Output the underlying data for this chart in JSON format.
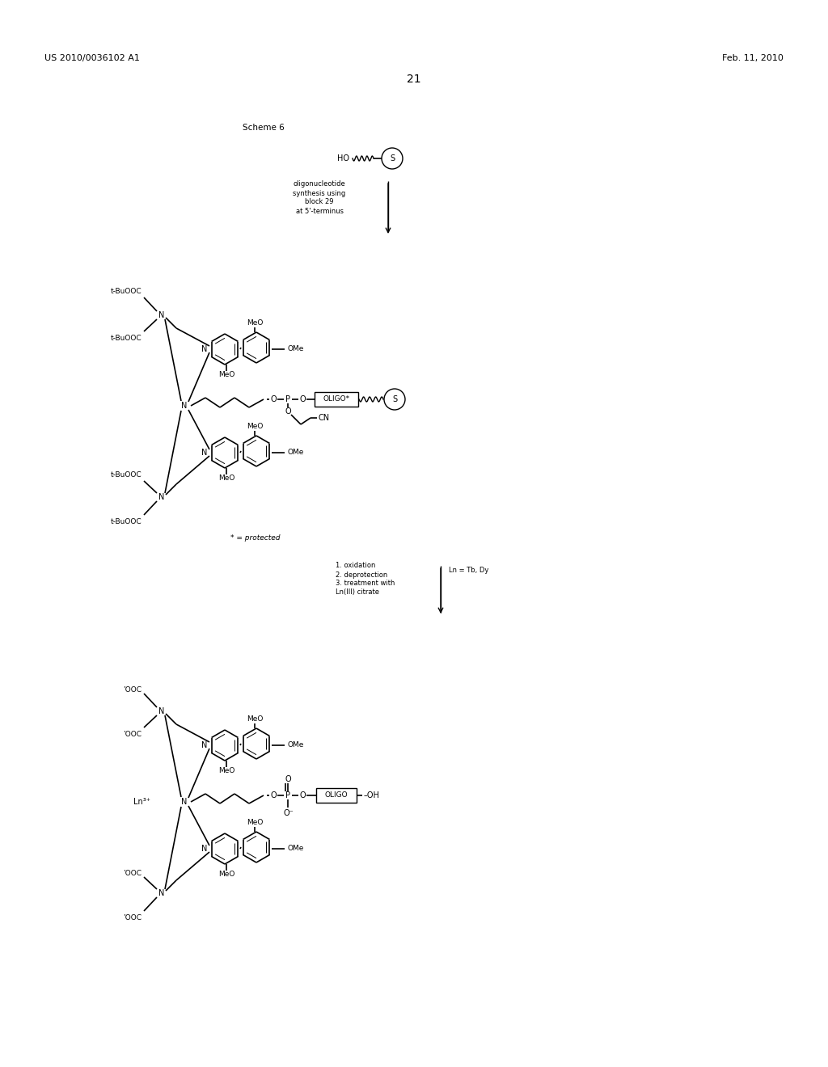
{
  "bg_color": "#ffffff",
  "patent_number": "US 2010/0036102 A1",
  "patent_date": "Feb. 11, 2010",
  "page_number": "21",
  "scheme_label": "Scheme 6",
  "footnote1": "* = protected",
  "reaction1_lines": [
    "oligonucleotide",
    "synthesis using",
    "block 29",
    "at 5'-terminus"
  ],
  "reaction2_lines": [
    "1. oxidation",
    "2. deprotection",
    "3. treatment with",
    "Ln(III) citrate"
  ],
  "reaction2_label": "Ln = Tb, Dy"
}
